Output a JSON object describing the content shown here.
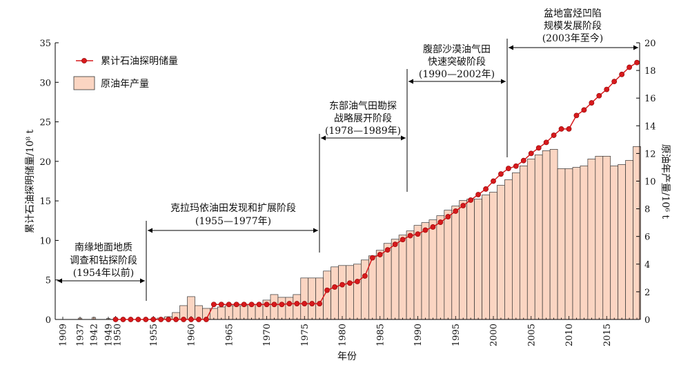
{
  "legend": {
    "reserves_label": "累计石油探明储量",
    "production_label": "原油年产量"
  },
  "axes": {
    "xlabel": "年份",
    "ylabel_left": "累计石油探明储量/10⁸ t",
    "ylabel_right": "原油年产量/10⁶ t"
  },
  "stages": [
    {
      "lines": [
        "南缘地面地质",
        "调查和钻探阶段",
        "(1954年以前)"
      ]
    },
    {
      "lines": [
        "克拉玛依油田发现和扩展阶段",
        "(1955—1977年)"
      ]
    },
    {
      "lines": [
        "东部油气田勘探",
        "战略展开阶段",
        "(1978—1989年)"
      ]
    },
    {
      "lines": [
        "腹部沙漠油气田",
        "快速突破阶段",
        "(1990—2002年)"
      ]
    },
    {
      "lines": [
        "盆地富烃凹陷",
        "规模发展阶段",
        "(2003年至今)"
      ]
    }
  ],
  "colors": {
    "line": "#d7191c",
    "bar_fill": "#fbd5c2",
    "bar_stroke": "#333333"
  },
  "chart_data": {
    "type": "bar",
    "title": "",
    "xlabel": "年份",
    "ylabel": "累计石油探明储量/10⁸ t",
    "ylabel_right": "原油年产量/10⁶ t",
    "ylim": [
      0,
      35
    ],
    "ylim_right": [
      0,
      20
    ],
    "yticks": [
      0,
      5,
      10,
      15,
      20,
      25,
      30,
      35
    ],
    "yticks_right": [
      0,
      2,
      4,
      6,
      8,
      10,
      12,
      14,
      16,
      18,
      20
    ],
    "x_tick_labels": [
      "1909",
      "1937",
      "1942",
      "1949",
      "1950",
      "1955",
      "1960",
      "1965",
      "1970",
      "1975",
      "1980",
      "1985",
      "1990",
      "1995",
      "2000",
      "2005",
      "2010",
      "2015"
    ],
    "legend_position": "top-left",
    "grid": false,
    "x": [
      1909,
      1937,
      1942,
      1949,
      1950,
      1951,
      1952,
      1953,
      1954,
      1955,
      1956,
      1957,
      1958,
      1959,
      1960,
      1961,
      1962,
      1963,
      1964,
      1965,
      1966,
      1967,
      1968,
      1969,
      1970,
      1971,
      1972,
      1973,
      1974,
      1975,
      1976,
      1977,
      1978,
      1979,
      1980,
      1981,
      1982,
      1983,
      1984,
      1985,
      1986,
      1987,
      1988,
      1989,
      1990,
      1991,
      1992,
      1993,
      1994,
      1995,
      1996,
      1997,
      1998,
      1999,
      2000,
      2001,
      2002,
      2003,
      2004,
      2005,
      2006,
      2007,
      2008,
      2009,
      2010,
      2011,
      2012,
      2013,
      2014,
      2015,
      2016,
      2017,
      2018,
      2019
    ],
    "series": [
      {
        "name": "原油年产量",
        "type": "bar",
        "axis": "right",
        "values": [
          0,
          0.1,
          0.15,
          0.07,
          0,
          0,
          0,
          0,
          0,
          0.03,
          0.1,
          0.2,
          0.5,
          1.0,
          1.65,
          1.0,
          0.8,
          0.8,
          0.9,
          1.0,
          1.0,
          1.0,
          1.1,
          1.1,
          1.4,
          1.8,
          1.6,
          1.6,
          1.8,
          3.0,
          3.0,
          3.0,
          3.5,
          3.8,
          3.9,
          3.9,
          4.0,
          4.3,
          4.6,
          5.0,
          5.5,
          5.8,
          6.1,
          6.4,
          6.8,
          7.0,
          7.2,
          7.5,
          7.9,
          8.2,
          8.6,
          8.7,
          8.7,
          9.0,
          9.2,
          9.7,
          10.1,
          10.6,
          11.1,
          11.6,
          11.9,
          12.2,
          12.3,
          10.9,
          10.9,
          11.0,
          11.1,
          11.6,
          11.8,
          11.8,
          11.1,
          11.2,
          11.5,
          12.5
        ]
      },
      {
        "name": "累计石油探明储量",
        "type": "line",
        "axis": "left",
        "values": [
          null,
          null,
          null,
          null,
          0,
          0,
          0,
          0,
          0,
          0,
          0,
          0,
          0,
          0,
          0,
          0,
          0,
          1.9,
          1.9,
          1.9,
          1.9,
          1.9,
          1.9,
          1.9,
          1.9,
          1.9,
          1.9,
          2.0,
          2.0,
          2.0,
          2.0,
          2.0,
          3.7,
          4.1,
          4.4,
          4.6,
          4.8,
          5.5,
          7.8,
          8.2,
          8.8,
          9.5,
          10.1,
          10.6,
          10.8,
          11.3,
          11.7,
          12.3,
          13.0,
          13.7,
          14.4,
          15.1,
          15.8,
          16.5,
          17.5,
          18.4,
          19.1,
          19.4,
          20.1,
          21.0,
          21.7,
          22.4,
          23.3,
          24.1,
          24.1,
          25.8,
          26.5,
          27.4,
          28.3,
          29.1,
          30.1,
          31.0,
          31.9,
          32.5
        ]
      }
    ]
  }
}
